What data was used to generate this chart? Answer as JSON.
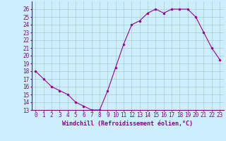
{
  "x": [
    0,
    1,
    2,
    3,
    4,
    5,
    6,
    7,
    8,
    9,
    10,
    11,
    12,
    13,
    14,
    15,
    16,
    17,
    18,
    19,
    20,
    21,
    22,
    23
  ],
  "y": [
    18,
    17,
    16,
    15.5,
    15,
    14,
    13.5,
    13,
    13,
    15.5,
    18.5,
    21.5,
    24,
    24.5,
    25.5,
    26,
    25.5,
    26,
    26,
    26,
    25,
    23,
    21,
    19.5
  ],
  "line_color": "#990099",
  "marker": "o",
  "markersize": 2,
  "linewidth": 0.8,
  "xlabel": "Windchill (Refroidissement éolien,°C)",
  "xlim": [
    -0.5,
    23.5
  ],
  "ylim": [
    13,
    27
  ],
  "yticks": [
    13,
    14,
    15,
    16,
    17,
    18,
    19,
    20,
    21,
    22,
    23,
    24,
    25,
    26
  ],
  "xticks": [
    0,
    1,
    2,
    3,
    4,
    5,
    6,
    7,
    8,
    9,
    10,
    11,
    12,
    13,
    14,
    15,
    16,
    17,
    18,
    19,
    20,
    21,
    22,
    23
  ],
  "bg_color": "#cceeff",
  "grid_color": "#aacccc",
  "tick_color": "#880088",
  "label_color": "#880088",
  "xlabel_fontsize": 6,
  "tick_fontsize": 5.5
}
